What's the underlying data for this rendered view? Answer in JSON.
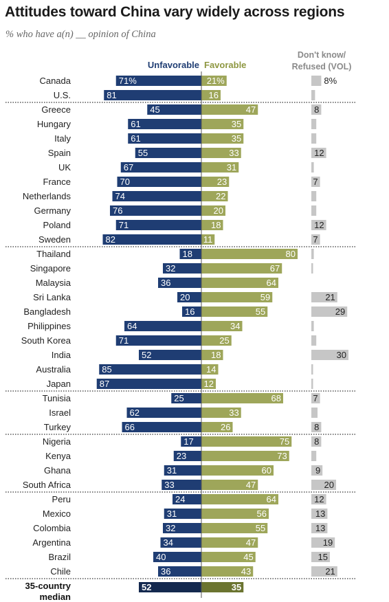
{
  "title": "Attitudes toward China vary widely across regions",
  "subtitle": "% who have a(n) __ opinion of China",
  "colors": {
    "unfavorable": "#1f3d73",
    "favorable": "#9ea65a",
    "dontknow": "#c6c6c6",
    "median_unfavorable": "#14294f",
    "median_favorable": "#6b7430",
    "legend_unfavorable": "#1f3d73",
    "legend_favorable": "#8e9741",
    "legend_dontknow": "#8a8a8a"
  },
  "chart_data": {
    "type": "bar",
    "orientation": "horizontal",
    "stacked": "diverging",
    "legend": {
      "unfavorable": "Unfavorable",
      "favorable": "Favorable",
      "dontknow_line1": "Don't know/",
      "dontknow_line2": "Refused (VOL)"
    },
    "series": [
      {
        "name": "Unfavorable"
      },
      {
        "name": "Favorable"
      },
      {
        "name": "Don't know/Refused (VOL)"
      }
    ],
    "groups": [
      {
        "rows": [
          {
            "country": "Canada",
            "unfav": 71,
            "fav": 21,
            "dk": 8,
            "unfav_label": "71%",
            "fav_label": "21%",
            "dk_label": "8%"
          },
          {
            "country": "U.S.",
            "unfav": 81,
            "fav": 16,
            "dk": 3
          }
        ]
      },
      {
        "rows": [
          {
            "country": "Greece",
            "unfav": 45,
            "fav": 47,
            "dk": 8,
            "dk_label": "8"
          },
          {
            "country": "Hungary",
            "unfav": 61,
            "fav": 35,
            "dk": 4
          },
          {
            "country": "Italy",
            "unfav": 61,
            "fav": 35,
            "dk": 4
          },
          {
            "country": "Spain",
            "unfav": 55,
            "fav": 33,
            "dk": 12,
            "dk_label": "12"
          },
          {
            "country": "UK",
            "unfav": 67,
            "fav": 31,
            "dk": 2
          },
          {
            "country": "France",
            "unfav": 70,
            "fav": 23,
            "dk": 7,
            "dk_label": "7"
          },
          {
            "country": "Netherlands",
            "unfav": 74,
            "fav": 22,
            "dk": 4
          },
          {
            "country": "Germany",
            "unfav": 76,
            "fav": 20,
            "dk": 4
          },
          {
            "country": "Poland",
            "unfav": 71,
            "fav": 18,
            "dk": 12,
            "dk_label": "12"
          },
          {
            "country": "Sweden",
            "unfav": 82,
            "fav": 11,
            "dk": 7,
            "dk_label": "7"
          }
        ]
      },
      {
        "rows": [
          {
            "country": "Thailand",
            "unfav": 18,
            "fav": 80,
            "dk": 2
          },
          {
            "country": "Singapore",
            "unfav": 32,
            "fav": 67,
            "dk": 1
          },
          {
            "country": "Malaysia",
            "unfav": 36,
            "fav": 64,
            "dk": 0
          },
          {
            "country": "Sri Lanka",
            "unfav": 20,
            "fav": 59,
            "dk": 21,
            "dk_label": "21"
          },
          {
            "country": "Bangladesh",
            "unfav": 16,
            "fav": 55,
            "dk": 29,
            "dk_label": "29"
          },
          {
            "country": "Philippines",
            "unfav": 64,
            "fav": 34,
            "dk": 2
          },
          {
            "country": "South Korea",
            "unfav": 71,
            "fav": 25,
            "dk": 4
          },
          {
            "country": "India",
            "unfav": 52,
            "fav": 18,
            "dk": 30,
            "dk_label": "30"
          },
          {
            "country": "Australia",
            "unfav": 85,
            "fav": 14,
            "dk": 1
          },
          {
            "country": "Japan",
            "unfav": 87,
            "fav": 12,
            "dk": 1
          }
        ]
      },
      {
        "rows": [
          {
            "country": "Tunisia",
            "unfav": 25,
            "fav": 68,
            "dk": 7,
            "dk_label": "7"
          },
          {
            "country": "Israel",
            "unfav": 62,
            "fav": 33,
            "dk": 5
          },
          {
            "country": "Turkey",
            "unfav": 66,
            "fav": 26,
            "dk": 8,
            "dk_label": "8"
          }
        ]
      },
      {
        "rows": [
          {
            "country": "Nigeria",
            "unfav": 17,
            "fav": 75,
            "dk": 8,
            "dk_label": "8"
          },
          {
            "country": "Kenya",
            "unfav": 23,
            "fav": 73,
            "dk": 4
          },
          {
            "country": "Ghana",
            "unfav": 31,
            "fav": 60,
            "dk": 9,
            "dk_label": "9"
          },
          {
            "country": "South Africa",
            "unfav": 33,
            "fav": 47,
            "dk": 20,
            "dk_label": "20"
          }
        ]
      },
      {
        "rows": [
          {
            "country": "Peru",
            "unfav": 24,
            "fav": 64,
            "dk": 12,
            "dk_label": "12"
          },
          {
            "country": "Mexico",
            "unfav": 31,
            "fav": 56,
            "dk": 13,
            "dk_label": "13"
          },
          {
            "country": "Colombia",
            "unfav": 32,
            "fav": 55,
            "dk": 13,
            "dk_label": "13"
          },
          {
            "country": "Argentina",
            "unfav": 34,
            "fav": 47,
            "dk": 19,
            "dk_label": "19"
          },
          {
            "country": "Brazil",
            "unfav": 40,
            "fav": 45,
            "dk": 15,
            "dk_label": "15"
          },
          {
            "country": "Chile",
            "unfav": 36,
            "fav": 43,
            "dk": 21,
            "dk_label": "21"
          }
        ]
      }
    ],
    "median": {
      "label_line1": "35-country",
      "label_line2": "median",
      "unfav": 52,
      "fav": 35
    }
  }
}
